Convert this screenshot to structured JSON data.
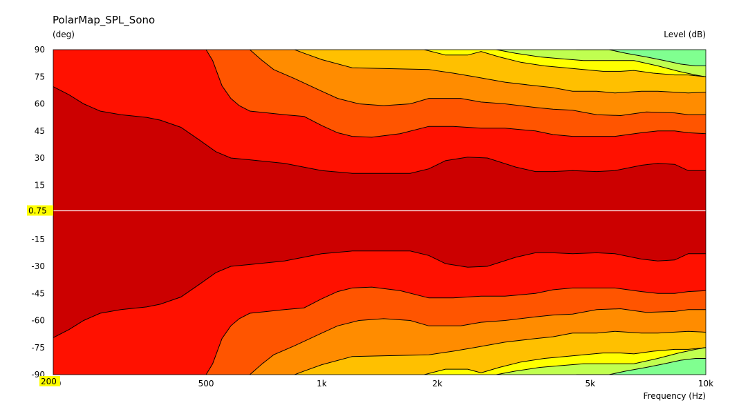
{
  "chart_data": {
    "type": "heatmap",
    "title": "PolarMap_SPL_Sono",
    "ylabel": "(deg)",
    "colorbar_label": "Level  (dB)",
    "xlabel": "Frequency  (Hz)",
    "x_scale": "log",
    "xlim": [
      200,
      10000
    ],
    "ylim": [
      -90,
      90
    ],
    "x_ticks": [
      {
        "value": 200,
        "label": "200"
      },
      {
        "value": 500,
        "label": "500"
      },
      {
        "value": 1000,
        "label": "1k"
      },
      {
        "value": 2000,
        "label": "2k"
      },
      {
        "value": 5000,
        "label": "5k"
      },
      {
        "value": 10000,
        "label": "10k"
      }
    ],
    "y_ticks": [
      {
        "value": 90,
        "label": "90"
      },
      {
        "value": 75,
        "label": "75"
      },
      {
        "value": 60,
        "label": "60"
      },
      {
        "value": 45,
        "label": "45"
      },
      {
        "value": 30,
        "label": "30"
      },
      {
        "value": 15,
        "label": "15"
      },
      {
        "value": -15,
        "label": "-15"
      },
      {
        "value": -30,
        "label": "-30"
      },
      {
        "value": -45,
        "label": "-45"
      },
      {
        "value": -60,
        "label": "-60"
      },
      {
        "value": -75,
        "label": "-75"
      },
      {
        "value": -90,
        "label": "-90"
      }
    ],
    "cursor": {
      "y": 0.75,
      "y_label": "0.75",
      "x": 200,
      "x_label": "200",
      "highlight_color": "#ffff00"
    },
    "band_colors": [
      "#cc0000",
      "#ff1100",
      "#ff5500",
      "#ff8c00",
      "#ffc000",
      "#ffff00",
      "#c0ff50",
      "#80ff90"
    ],
    "contours": [
      {
        "points": [
          [
            200,
            69.5
          ],
          [
            220,
            65
          ],
          [
            240,
            60
          ],
          [
            265,
            56
          ],
          [
            300,
            54
          ],
          [
            350,
            52.5
          ],
          [
            380,
            51
          ],
          [
            430,
            47
          ],
          [
            480,
            40
          ],
          [
            530,
            33.5
          ],
          [
            580,
            30
          ],
          [
            650,
            29
          ],
          [
            800,
            27
          ],
          [
            1000,
            23
          ],
          [
            1200,
            21.5
          ],
          [
            1500,
            21.5
          ],
          [
            1700,
            21.5
          ],
          [
            1900,
            24
          ],
          [
            2100,
            28.5
          ],
          [
            2400,
            30.5
          ],
          [
            2700,
            30
          ],
          [
            3200,
            25
          ],
          [
            3600,
            22.5
          ],
          [
            4000,
            22.5
          ],
          [
            4500,
            23
          ],
          [
            5200,
            22.5
          ],
          [
            5800,
            23
          ],
          [
            6800,
            26
          ],
          [
            7500,
            27
          ],
          [
            8300,
            26.5
          ],
          [
            9000,
            23
          ],
          [
            10000,
            23
          ]
        ]
      },
      {
        "points": [
          [
            500,
            90
          ],
          [
            520,
            84
          ],
          [
            550,
            70
          ],
          [
            580,
            63
          ],
          [
            610,
            59
          ],
          [
            650,
            56
          ],
          [
            800,
            54
          ],
          [
            900,
            53
          ],
          [
            1000,
            48
          ],
          [
            1100,
            44
          ],
          [
            1200,
            42
          ],
          [
            1350,
            41.5
          ],
          [
            1600,
            43.5
          ],
          [
            1900,
            47.5
          ],
          [
            2200,
            47.5
          ],
          [
            2600,
            46.5
          ],
          [
            3000,
            46.5
          ],
          [
            3600,
            45
          ],
          [
            4000,
            43
          ],
          [
            4500,
            42
          ],
          [
            5200,
            42
          ],
          [
            5800,
            42
          ],
          [
            6800,
            44
          ],
          [
            7500,
            45
          ],
          [
            8300,
            45
          ],
          [
            9000,
            44
          ],
          [
            10000,
            43.5
          ]
        ]
      },
      {
        "points": [
          [
            650,
            90
          ],
          [
            700,
            84
          ],
          [
            750,
            79
          ],
          [
            850,
            74
          ],
          [
            1000,
            67
          ],
          [
            1100,
            63
          ],
          [
            1250,
            60
          ],
          [
            1450,
            59
          ],
          [
            1700,
            60
          ],
          [
            1900,
            63
          ],
          [
            2300,
            63
          ],
          [
            2600,
            61
          ],
          [
            3000,
            60
          ],
          [
            3600,
            58
          ],
          [
            4000,
            57
          ],
          [
            4500,
            56.5
          ],
          [
            5200,
            54
          ],
          [
            6000,
            53.5
          ],
          [
            7000,
            55.5
          ],
          [
            8300,
            55
          ],
          [
            9000,
            54
          ],
          [
            10000,
            54
          ]
        ]
      },
      {
        "points": [
          [
            850,
            90
          ],
          [
            900,
            88
          ],
          [
            1000,
            84.5
          ],
          [
            1200,
            80
          ],
          [
            1500,
            79.5
          ],
          [
            1900,
            79
          ],
          [
            2200,
            77
          ],
          [
            2500,
            75
          ],
          [
            3000,
            72
          ],
          [
            3600,
            70
          ],
          [
            4000,
            69
          ],
          [
            4500,
            67
          ],
          [
            5200,
            67
          ],
          [
            5800,
            66
          ],
          [
            6800,
            67
          ],
          [
            7500,
            67
          ],
          [
            9000,
            66
          ],
          [
            10000,
            66.5
          ]
        ]
      },
      {
        "points": [
          [
            1850,
            90
          ],
          [
            2100,
            87
          ],
          [
            2400,
            87
          ],
          [
            2600,
            89
          ],
          [
            2900,
            86
          ],
          [
            3300,
            83
          ],
          [
            3800,
            81
          ],
          [
            4300,
            80
          ],
          [
            4800,
            79
          ],
          [
            5400,
            78
          ],
          [
            6000,
            78
          ],
          [
            6500,
            78.5
          ],
          [
            7300,
            77
          ],
          [
            8300,
            76
          ],
          [
            9000,
            76
          ],
          [
            10000,
            75
          ]
        ]
      },
      {
        "points": [
          [
            2850,
            90
          ],
          [
            3200,
            88
          ],
          [
            3700,
            86
          ],
          [
            4200,
            85
          ],
          [
            4800,
            84
          ],
          [
            5500,
            84
          ],
          [
            6500,
            84
          ],
          [
            7500,
            81
          ],
          [
            8500,
            78
          ],
          [
            9400,
            76
          ],
          [
            10000,
            75
          ]
        ]
      },
      {
        "points": [
          [
            4600,
            90
          ],
          [
            5600,
            90
          ],
          [
            6200,
            88
          ],
          [
            7000,
            86
          ],
          [
            7800,
            84
          ],
          [
            8600,
            82
          ],
          [
            9400,
            81
          ],
          [
            10000,
            81
          ]
        ]
      }
    ]
  }
}
